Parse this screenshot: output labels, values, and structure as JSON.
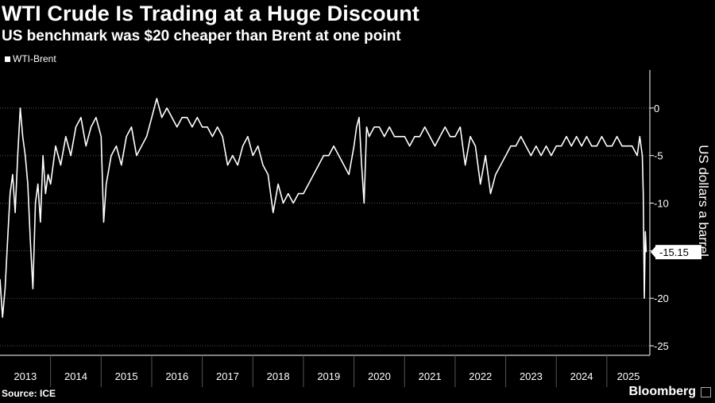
{
  "header": {
    "title": "WTI Crude Is Trading at a Huge Discount",
    "subtitle": "US benchmark was $20 cheaper than Brent at one point"
  },
  "footer": {
    "source": "Source: ICE",
    "brand": "Bloomberg"
  },
  "colors": {
    "background": "#000000",
    "line": "#ffffff",
    "grid": "#555555",
    "text": "#ffffff"
  },
  "chart_data": {
    "type": "line",
    "title": "WTI Crude Is Trading at a Huge Discount",
    "subtitle": "US benchmark was $20 cheaper than Brent at one point",
    "ylabel": "US dollars a barrel",
    "xlabel": "",
    "legend": {
      "position": "top-left",
      "entries": [
        "WTI-Brent"
      ]
    },
    "grid": true,
    "ylim": [
      -26,
      4
    ],
    "yticks": [
      0,
      -5,
      -10,
      -15,
      -20,
      -25
    ],
    "ytick_labels": [
      "0",
      "-5",
      "-10",
      "-15",
      "-20",
      "-25"
    ],
    "xlim": [
      2013.0,
      2025.85
    ],
    "xticks": [
      "2013",
      "2014",
      "2015",
      "2016",
      "2017",
      "2018",
      "2019",
      "2020",
      "2021",
      "2022",
      "2023",
      "2024",
      "2025"
    ],
    "last_value_label": "-15.15",
    "last_value": -15.15,
    "series": [
      {
        "name": "WTI-Brent",
        "x": [
          2013.0,
          2013.05,
          2013.1,
          2013.15,
          2013.2,
          2013.25,
          2013.3,
          2013.35,
          2013.4,
          2013.45,
          2013.5,
          2013.55,
          2013.6,
          2013.65,
          2013.7,
          2013.75,
          2013.8,
          2013.85,
          2013.9,
          2013.95,
          2014.0,
          2014.1,
          2014.2,
          2014.3,
          2014.4,
          2014.5,
          2014.6,
          2014.7,
          2014.8,
          2014.9,
          2015.0,
          2015.05,
          2015.1,
          2015.2,
          2015.3,
          2015.4,
          2015.5,
          2015.6,
          2015.7,
          2015.8,
          2015.9,
          2016.0,
          2016.1,
          2016.2,
          2016.3,
          2016.4,
          2016.5,
          2016.6,
          2016.7,
          2016.8,
          2016.9,
          2017.0,
          2017.1,
          2017.2,
          2017.3,
          2017.4,
          2017.5,
          2017.6,
          2017.7,
          2017.8,
          2017.9,
          2018.0,
          2018.1,
          2018.2,
          2018.3,
          2018.4,
          2018.5,
          2018.6,
          2018.7,
          2018.8,
          2018.9,
          2019.0,
          2019.1,
          2019.2,
          2019.3,
          2019.4,
          2019.5,
          2019.6,
          2019.7,
          2019.8,
          2019.9,
          2020.0,
          2020.05,
          2020.1,
          2020.15,
          2020.2,
          2020.25,
          2020.3,
          2020.4,
          2020.5,
          2020.6,
          2020.7,
          2020.8,
          2020.9,
          2021.0,
          2021.1,
          2021.2,
          2021.3,
          2021.4,
          2021.5,
          2021.6,
          2021.7,
          2021.8,
          2021.9,
          2022.0,
          2022.1,
          2022.2,
          2022.3,
          2022.4,
          2022.5,
          2022.6,
          2022.7,
          2022.8,
          2022.9,
          2023.0,
          2023.1,
          2023.2,
          2023.3,
          2023.4,
          2023.5,
          2023.6,
          2023.7,
          2023.8,
          2023.9,
          2024.0,
          2024.1,
          2024.2,
          2024.3,
          2024.4,
          2024.5,
          2024.6,
          2024.7,
          2024.8,
          2024.9,
          2025.0,
          2025.1,
          2025.2,
          2025.3,
          2025.4,
          2025.5,
          2025.6,
          2025.65,
          2025.7,
          2025.72,
          2025.74,
          2025.76,
          2025.78
        ],
        "y": [
          -18,
          -22,
          -19,
          -14,
          -9,
          -7,
          -11,
          -5,
          0,
          -3,
          -5,
          -8,
          -14,
          -19,
          -10,
          -8,
          -12,
          -5,
          -9,
          -7,
          -8,
          -4,
          -6,
          -3,
          -5,
          -2,
          -1,
          -4,
          -2,
          -1,
          -3,
          -12,
          -8,
          -5,
          -4,
          -6,
          -3,
          -2,
          -5,
          -4,
          -3,
          -1,
          1,
          -1,
          0,
          -1,
          -2,
          -1,
          -1,
          -2,
          -1,
          -2,
          -2,
          -3,
          -2,
          -3,
          -6,
          -5,
          -6,
          -4,
          -3,
          -5,
          -4,
          -6,
          -7,
          -11,
          -8,
          -10,
          -9,
          -10,
          -9,
          -9,
          -8,
          -7,
          -6,
          -5,
          -5,
          -4,
          -5,
          -6,
          -7,
          -4,
          -2,
          -1,
          -6,
          -10,
          -2,
          -3,
          -2,
          -2,
          -3,
          -2,
          -3,
          -3,
          -3,
          -4,
          -3,
          -3,
          -2,
          -3,
          -4,
          -3,
          -2,
          -3,
          -3,
          -2,
          -6,
          -3,
          -4,
          -8,
          -5,
          -9,
          -7,
          -6,
          -5,
          -4,
          -4,
          -3,
          -4,
          -5,
          -4,
          -5,
          -4,
          -5,
          -4,
          -4,
          -3,
          -4,
          -3,
          -4,
          -3,
          -4,
          -4,
          -3,
          -4,
          -4,
          -3,
          -4,
          -4,
          -4,
          -5,
          -3,
          -5,
          -9,
          -20,
          -13,
          -15.15
        ]
      }
    ]
  }
}
